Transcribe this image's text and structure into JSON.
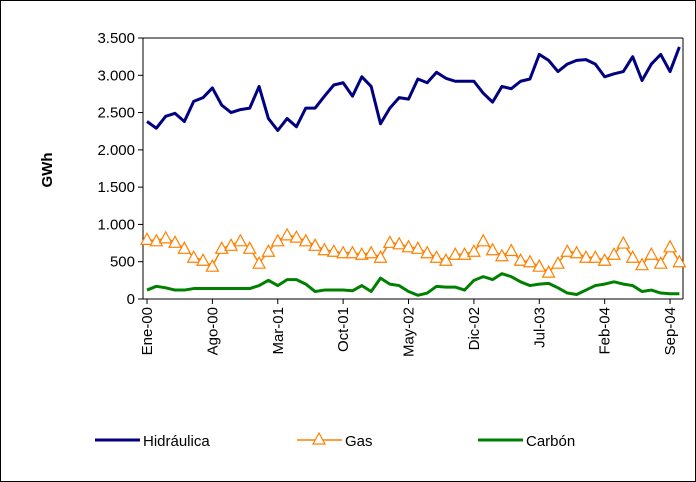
{
  "chart_data": {
    "type": "line",
    "ylabel": "GWh",
    "categories": [
      "Ene-00",
      null,
      null,
      null,
      null,
      null,
      null,
      "Ago-00",
      null,
      null,
      null,
      null,
      null,
      null,
      "Mar-01",
      null,
      null,
      null,
      null,
      null,
      null,
      "Oct-01",
      null,
      null,
      null,
      null,
      null,
      null,
      "May-02",
      null,
      null,
      null,
      null,
      null,
      null,
      "Dic-02",
      null,
      null,
      null,
      null,
      null,
      null,
      "Jul-03",
      null,
      null,
      null,
      null,
      null,
      null,
      "Feb-04",
      null,
      null,
      null,
      null,
      null,
      null,
      "Sep-04",
      null
    ],
    "series": [
      {
        "name": "Hidráulica",
        "color": "#000080",
        "marker": "none",
        "values": [
          2380,
          2290,
          2450,
          2490,
          2380,
          2650,
          2700,
          2830,
          2600,
          2500,
          2540,
          2560,
          2850,
          2420,
          2260,
          2420,
          2310,
          2560,
          2560,
          2720,
          2870,
          2900,
          2720,
          2980,
          2850,
          2350,
          2560,
          2700,
          2680,
          2950,
          2900,
          3040,
          2960,
          2920,
          2920,
          2920,
          2760,
          2640,
          2850,
          2820,
          2920,
          2950,
          3280,
          3200,
          3050,
          3150,
          3200,
          3210,
          3150,
          2980,
          3020,
          3050,
          3250,
          2930,
          3150,
          3280,
          3050,
          3380
        ]
      },
      {
        "name": "Gas",
        "color": "#ff8000",
        "marker": "triangle",
        "values": [
          800,
          780,
          820,
          760,
          680,
          560,
          520,
          440,
          680,
          720,
          780,
          680,
          480,
          640,
          780,
          860,
          830,
          780,
          720,
          660,
          640,
          620,
          620,
          600,
          620,
          560,
          760,
          740,
          700,
          680,
          620,
          560,
          520,
          600,
          600,
          640,
          780,
          660,
          580,
          650,
          520,
          500,
          440,
          360,
          480,
          640,
          620,
          560,
          560,
          520,
          600,
          750,
          560,
          460,
          600,
          480,
          700,
          500
        ]
      },
      {
        "name": "Carbón",
        "color": "#008000",
        "marker": "none",
        "values": [
          120,
          170,
          150,
          120,
          120,
          140,
          140,
          140,
          140,
          140,
          140,
          140,
          180,
          250,
          180,
          260,
          260,
          200,
          100,
          120,
          120,
          120,
          110,
          180,
          100,
          280,
          200,
          180,
          100,
          50,
          80,
          170,
          160,
          160,
          120,
          250,
          300,
          260,
          340,
          300,
          230,
          180,
          200,
          210,
          150,
          80,
          60,
          120,
          180,
          200,
          230,
          200,
          180,
          100,
          120,
          80,
          70,
          70
        ]
      }
    ],
    "ylim": [
      0,
      3500
    ],
    "yticks": [
      0,
      500,
      {
        "value": 1000,
        "label": "1.000"
      },
      {
        "value": 1500,
        "label": "1.500"
      },
      {
        "value": 2000,
        "label": "2.000"
      },
      {
        "value": 2500,
        "label": "2.500"
      },
      {
        "value": 3000,
        "label": "3.000"
      },
      {
        "value": 3500,
        "label": "3.500"
      }
    ],
    "grid": false,
    "legend": "bottom"
  }
}
